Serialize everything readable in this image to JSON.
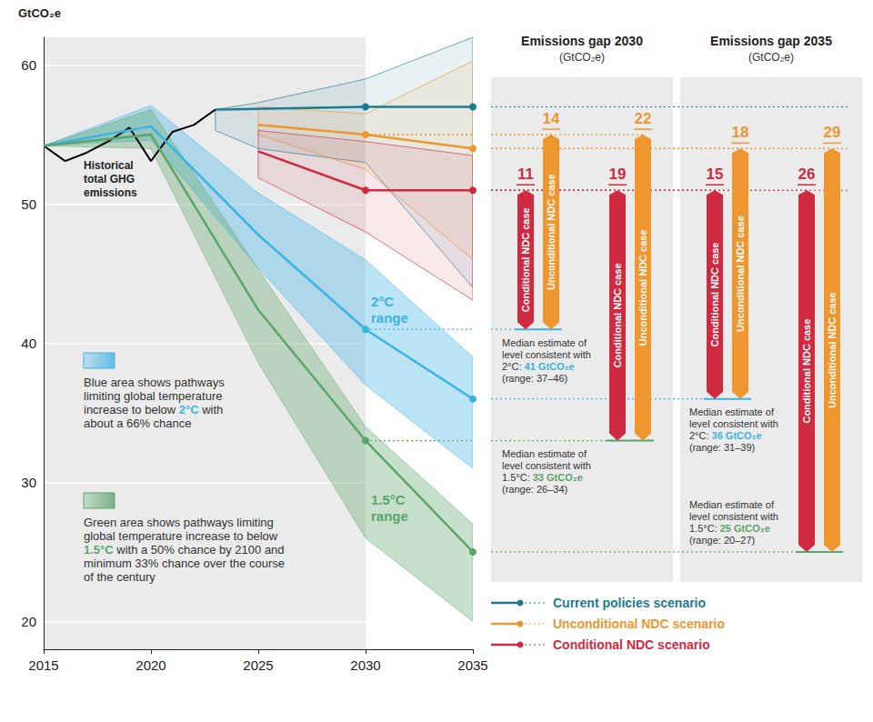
{
  "chart_data": {
    "type": "line",
    "ylabel": "GtCO₂e",
    "xlim": [
      2015,
      2035
    ],
    "xticks": [
      2015,
      2020,
      2025,
      2030,
      2035
    ],
    "ylim": [
      18,
      62
    ],
    "yticks": [
      20,
      30,
      40,
      50,
      60
    ],
    "grid": true,
    "series": [
      {
        "name": "Historical\ntotal GHG\nemissions",
        "color": "#000000",
        "x": [
          2015,
          2016,
          2017,
          2018,
          2019,
          2020,
          2021,
          2022,
          2023
        ],
        "values": [
          54.2,
          53.1,
          53.7,
          54.5,
          55.5,
          53.1,
          55.2,
          55.7,
          56.8
        ]
      },
      {
        "name": "Current policies scenario",
        "color": "#1d7b8f",
        "marker": "circle",
        "x": [
          2023,
          2030,
          2035
        ],
        "values": [
          56.8,
          57,
          57
        ],
        "band": {
          "x": [
            2023,
            2025,
            2030,
            2035
          ],
          "lower": [
            55.3,
            54.0,
            53.0,
            44.0
          ],
          "upper": [
            56.8,
            57.3,
            59.0,
            62.0
          ]
        }
      },
      {
        "name": "Unconditional NDC scenario",
        "color": "#f0962e",
        "marker": "circle",
        "x": [
          2025,
          2030,
          2035
        ],
        "values": [
          55.7,
          55,
          54
        ],
        "band": {
          "x": [
            2025,
            2030,
            2035
          ],
          "lower": [
            55.0,
            52.5,
            46.0
          ],
          "upper": [
            57.0,
            56.5,
            60.3
          ]
        }
      },
      {
        "name": "Conditional NDC scenario",
        "color": "#cf2a3f",
        "marker": "circle",
        "x": [
          2025,
          2030,
          2035
        ],
        "values": [
          53.8,
          51,
          51
        ],
        "band": {
          "x": [
            2025,
            2030,
            2035
          ],
          "lower": [
            51.9,
            48.0,
            43.1
          ],
          "upper": [
            55.3,
            54.5,
            53.5
          ]
        }
      },
      {
        "name": "2°C\nrange",
        "color": "#3bb3e4",
        "marker": "circle",
        "x": [
          2015,
          2020,
          2025,
          2030,
          2035
        ],
        "values": [
          54.2,
          55.6,
          47.8,
          41,
          36
        ],
        "band": {
          "x": [
            2015,
            2020,
            2025,
            2030,
            2035
          ],
          "lower": [
            54.2,
            54.6,
            45.4,
            37,
            31
          ],
          "upper": [
            54.2,
            57.1,
            50.8,
            46,
            39
          ]
        },
        "note": {
          "text": "Blue area shows pathways\nlimiting global temperature\nincrease to below 2°C with\nabout a 66% chance",
          "highlight": "2°C"
        }
      },
      {
        "name": "1.5°C\nrange",
        "color": "#5ba56a",
        "marker": "circle",
        "x": [
          2015,
          2020,
          2025,
          2030,
          2035
        ],
        "values": [
          54.2,
          55.0,
          42.4,
          33,
          25
        ],
        "band": {
          "x": [
            2015,
            2020,
            2025,
            2030,
            2035
          ],
          "lower": [
            54.2,
            54.0,
            38.6,
            26,
            20
          ],
          "upper": [
            54.2,
            56.8,
            45.3,
            34,
            27
          ]
        },
        "note": {
          "text": "Green area shows pathways limiting\nglobal temperature increase to below\n1.5°C with a 50% chance by 2100 and\nminimum 33% chance over the course\nof the century",
          "highlight": "1.5°C"
        }
      }
    ],
    "gaps": [
      {
        "year": 2030,
        "title": "Emissions gap 2030",
        "unit": "(GtCO₂e)",
        "targets": [
          {
            "color": "#3bb3e4",
            "to": 41,
            "note": {
              "text": "Median estimate of\nlevel consistent with\n2°C: 41 GtCO₂e\n(range: 37–46)",
              "highlight": "41 GtCO₂e"
            },
            "items": [
              {
                "case": "Conditional NDC case",
                "color": "#cf2a3f",
                "from": 51,
                "value": 11
              },
              {
                "case": "Unconditional NDC case",
                "color": "#f0962e",
                "from": 55,
                "value": 14
              }
            ]
          },
          {
            "color": "#5ba56a",
            "to": 33,
            "note": {
              "text": "Median estimate of\nlevel consistent with\n1.5°C: 33 GtCO₂e\n(range: 26–34)",
              "highlight": "33 GtCO₂e"
            },
            "items": [
              {
                "case": "Conditional NDC case",
                "color": "#cf2a3f",
                "from": 51,
                "value": 19
              },
              {
                "case": "Unconditional NDC case",
                "color": "#f0962e",
                "from": 55,
                "value": 22
              }
            ]
          }
        ]
      },
      {
        "year": 2035,
        "title": "Emissions gap 2035",
        "unit": "(GtCO₂e)",
        "targets": [
          {
            "color": "#3bb3e4",
            "to": 36,
            "note": {
              "text": "Median estimate of\nlevel consistent with\n2°C: 36 GtCO₂e\n(range: 31–39)",
              "highlight": "36 GtCO₂e"
            },
            "items": [
              {
                "case": "Conditional NDC case",
                "color": "#cf2a3f",
                "from": 51,
                "value": 15
              },
              {
                "case": "Unconditional NDC case",
                "color": "#f0962e",
                "from": 54,
                "value": 18
              }
            ]
          },
          {
            "color": "#5ba56a",
            "to": 25,
            "note": {
              "text": "Median estimate of\nlevel consistent with\n1.5°C: 25 GtCO₂e\n(range: 20–27)",
              "highlight": "25 GtCO₂e"
            },
            "items": [
              {
                "case": "Conditional NDC case",
                "color": "#cf2a3f",
                "from": 51,
                "value": 26
              },
              {
                "case": "Unconditional NDC case",
                "color": "#f0962e",
                "from": 54,
                "value": 29
              }
            ]
          }
        ]
      }
    ]
  }
}
